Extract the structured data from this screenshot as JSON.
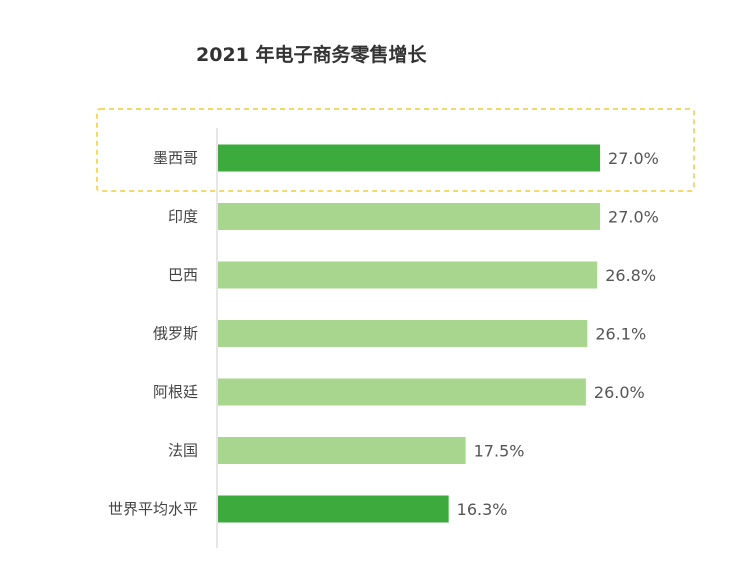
{
  "chart_data": {
    "type": "bar",
    "orientation": "horizontal",
    "title": "2021 年电子商务零售增长",
    "categories": [
      "墨西哥",
      "印度",
      "巴西",
      "俄罗斯",
      "阿根廷",
      "法国",
      "世界平均水平"
    ],
    "values": [
      27.0,
      27.0,
      26.8,
      26.1,
      26.0,
      17.5,
      16.3
    ],
    "value_labels": [
      "27.0%",
      "27.0%",
      "26.8%",
      "26.1%",
      "26.0%",
      "17.5%",
      "16.3%"
    ],
    "unit": "%",
    "highlighted": [
      "墨西哥",
      "世界平均水平"
    ],
    "highlight_box_category": "墨西哥",
    "grid": false,
    "legend": "none",
    "colors": {
      "highlight": "#3daa3d",
      "normal": "#a8d68e",
      "axis": "#cccccc",
      "highlight_box": "#f3d96a"
    }
  }
}
